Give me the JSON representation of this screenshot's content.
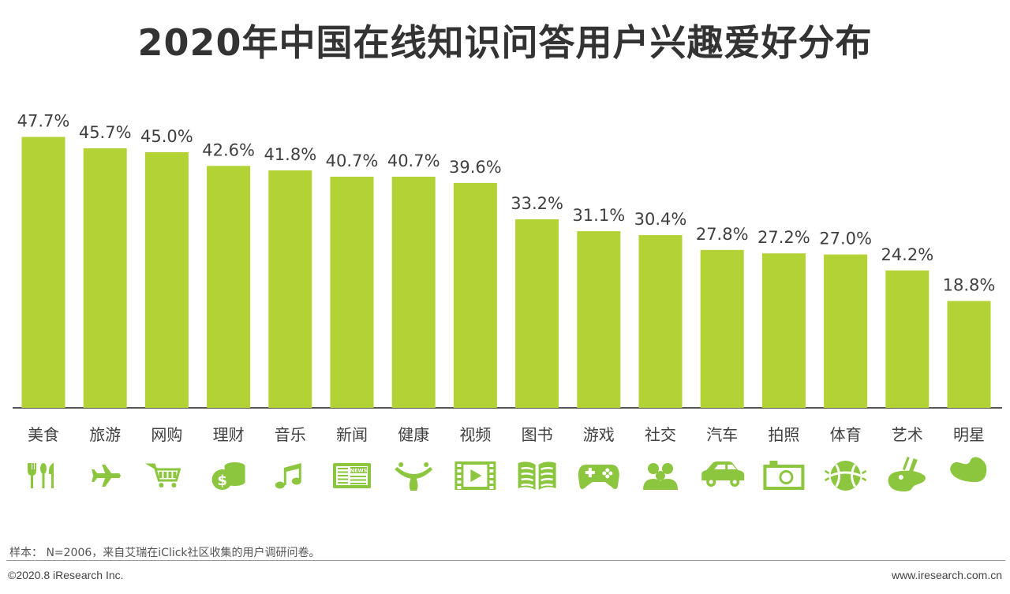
{
  "chart_data": {
    "type": "bar",
    "title": "2020年中国在线知识问答用户兴趣爱好分布",
    "categories": [
      "美食",
      "旅游",
      "网购",
      "理财",
      "音乐",
      "新闻",
      "健康",
      "视频",
      "图书",
      "游戏",
      "社交",
      "汽车",
      "拍照",
      "体育",
      "艺术",
      "明星"
    ],
    "values": [
      47.7,
      45.7,
      45.0,
      42.6,
      41.8,
      40.7,
      40.7,
      39.6,
      33.2,
      31.1,
      30.4,
      27.8,
      27.2,
      27.0,
      24.2,
      18.8
    ],
    "value_labels": [
      "47.7%",
      "45.7%",
      "45.0%",
      "42.6%",
      "41.8%",
      "40.7%",
      "40.7%",
      "39.6%",
      "33.2%",
      "31.1%",
      "30.4%",
      "27.8%",
      "27.2%",
      "27.0%",
      "24.2%",
      "18.8%"
    ],
    "icons": [
      "food-icon",
      "airplane-icon",
      "shopping-cart-icon",
      "coins-icon",
      "music-note-icon",
      "newspaper-icon",
      "health-icon",
      "video-icon",
      "book-icon",
      "gamepad-icon",
      "people-icon",
      "car-icon",
      "camera-icon",
      "ball-icon",
      "palette-icon",
      "star-icon"
    ],
    "ylim": [
      0,
      50
    ],
    "grid": false,
    "bar_color": "#b2d235",
    "icon_color": "#8cc63f",
    "axis_color": "#555555"
  },
  "footer": {
    "note": "样本：  N=2006，来自艾瑞在iClick社区收集的用户调研问卷。",
    "copyright": "©2020.8 iResearch Inc.",
    "website": "www.iresearch.com.cn"
  }
}
